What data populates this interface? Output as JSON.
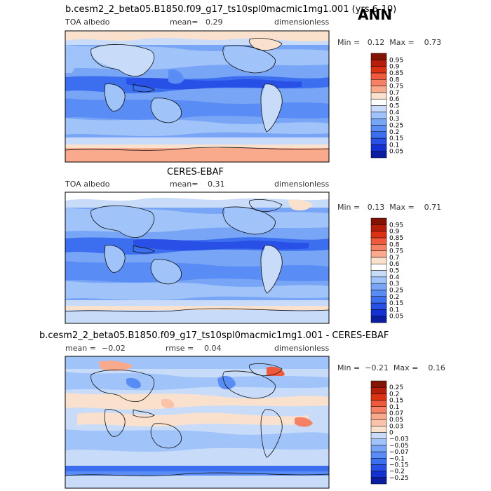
{
  "season": "ANN",
  "panels": [
    {
      "title": "b.cesm2_2_beta05.B1850.f09_g17_ts10spl0macmic1mg1.001 (yrs 6-10)",
      "variable": "TOA albedo",
      "mean_label": "mean=",
      "mean_value": "0.29",
      "units": "dimensionless",
      "min_max_text": "Min =   0.12  Max =    0.73",
      "levels": [
        "0.05",
        "0.1",
        "0.15",
        "0.2",
        "0.25",
        "0.3",
        "0.4",
        "0.5",
        "0.6",
        "0.7",
        "0.75",
        "0.8",
        "0.85",
        "0.9",
        "0.95"
      ],
      "colors": [
        "#0c1ea0",
        "#1432d2",
        "#2850e6",
        "#3c6ef0",
        "#5a8cf5",
        "#78a5f5",
        "#a0c3fa",
        "#c8dcfa",
        "#ffffff",
        "#fae1cd",
        "#faaa8c",
        "#f58264",
        "#f05a3c",
        "#dc3214",
        "#b41e0a",
        "#821405"
      ]
    },
    {
      "title": "CERES-EBAF",
      "variable": "TOA albedo",
      "mean_label": "mean=",
      "mean_value": "0.31",
      "units": "dimensionless",
      "min_max_text": "Min =   0.13  Max =    0.71",
      "levels": [
        "0.05",
        "0.1",
        "0.15",
        "0.2",
        "0.25",
        "0.3",
        "0.4",
        "0.5",
        "0.6",
        "0.7",
        "0.75",
        "0.8",
        "0.85",
        "0.9",
        "0.95"
      ],
      "colors": [
        "#0c1ea0",
        "#1432d2",
        "#2850e6",
        "#3c6ef0",
        "#5a8cf5",
        "#78a5f5",
        "#a0c3fa",
        "#c8dcfa",
        "#ffffff",
        "#fae1cd",
        "#faaa8c",
        "#f58264",
        "#f05a3c",
        "#dc3214",
        "#b41e0a",
        "#821405"
      ]
    },
    {
      "title": "b.cesm2_2_beta05.B1850.f09_g17_ts10spl0macmic1mg1.001 - CERES-EBAF",
      "mean_label": "mean =",
      "mean_value": "−0.02",
      "rmse_label": "rmse =",
      "rmse_value": "0.04",
      "units": "dimensionless",
      "min_max_text": "Min =  −0.21  Max =    0.16",
      "levels": [
        "−0.25",
        "−0.2",
        "−0.15",
        "−0.1",
        "−0.07",
        "−0.05",
        "−0.03",
        "0",
        "0.03",
        "0.05",
        "0.07",
        "0.1",
        "0.15",
        "0.2",
        "0.25"
      ],
      "colors": [
        "#0c1ea0",
        "#1432d2",
        "#2850e6",
        "#3c6ef0",
        "#5a8cf5",
        "#78a5f5",
        "#a0c3fa",
        "#c8dcfa",
        "#fae1cd",
        "#fac3aa",
        "#faaa8c",
        "#f58264",
        "#f05a3c",
        "#dc3214",
        "#b41e0a",
        "#821405"
      ]
    }
  ],
  "chart_data": [
    {
      "type": "heatmap",
      "title": "b.cesm2_2_beta05.B1850.f09_g17_ts10spl0macmic1mg1.001 (yrs 6-10)",
      "variable": "TOA albedo",
      "units": "dimensionless",
      "mean": 0.29,
      "min": 0.12,
      "max": 0.73,
      "contour_levels": [
        0.05,
        0.1,
        0.15,
        0.2,
        0.25,
        0.3,
        0.4,
        0.5,
        0.6,
        0.7,
        0.75,
        0.8,
        0.85,
        0.9,
        0.95
      ]
    },
    {
      "type": "heatmap",
      "title": "CERES-EBAF",
      "variable": "TOA albedo",
      "units": "dimensionless",
      "mean": 0.31,
      "min": 0.13,
      "max": 0.71,
      "contour_levels": [
        0.05,
        0.1,
        0.15,
        0.2,
        0.25,
        0.3,
        0.4,
        0.5,
        0.6,
        0.7,
        0.75,
        0.8,
        0.85,
        0.9,
        0.95
      ]
    },
    {
      "type": "heatmap",
      "title": "b.cesm2_2_beta05.B1850.f09_g17_ts10spl0macmic1mg1.001 - CERES-EBAF",
      "units": "dimensionless",
      "mean": -0.02,
      "rmse": 0.04,
      "min": -0.21,
      "max": 0.16,
      "contour_levels": [
        -0.25,
        -0.2,
        -0.15,
        -0.1,
        -0.07,
        -0.05,
        -0.03,
        0,
        0.03,
        0.05,
        0.07,
        0.1,
        0.15,
        0.2,
        0.25
      ]
    }
  ]
}
